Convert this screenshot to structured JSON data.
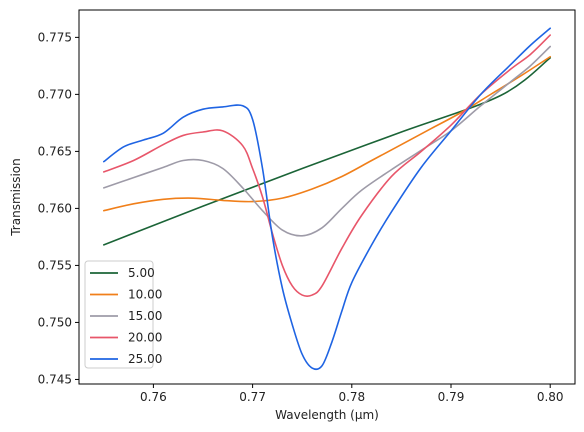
{
  "chart_data": {
    "type": "line",
    "xlabel": "Wavelength (µm)",
    "ylabel": "Transmission",
    "xlim": [
      0.7525,
      0.8025
    ],
    "ylim": [
      0.7446,
      0.7774
    ],
    "x_ticks": [
      0.76,
      0.77,
      0.78,
      0.79,
      0.8
    ],
    "y_ticks": [
      0.745,
      0.75,
      0.755,
      0.76,
      0.765,
      0.77,
      0.775
    ],
    "grid": false,
    "legend_position": "lower-left",
    "series": [
      {
        "name": "5.00",
        "color": "#1b6437",
        "points": [
          [
            0.755,
            0.7568
          ],
          [
            0.765,
            0.7602
          ],
          [
            0.775,
            0.7635
          ],
          [
            0.785,
            0.7667
          ],
          [
            0.795,
            0.7699
          ],
          [
            0.8,
            0.7732
          ]
        ]
      },
      {
        "name": "10.00",
        "color": "#f07f1a",
        "points": [
          [
            0.755,
            0.7598
          ],
          [
            0.758,
            0.7604
          ],
          [
            0.761,
            0.7608
          ],
          [
            0.764,
            0.7609
          ],
          [
            0.767,
            0.7607
          ],
          [
            0.77,
            0.7606
          ],
          [
            0.773,
            0.7609
          ],
          [
            0.776,
            0.7617
          ],
          [
            0.779,
            0.7628
          ],
          [
            0.782,
            0.7642
          ],
          [
            0.785,
            0.7656
          ],
          [
            0.788,
            0.767
          ],
          [
            0.791,
            0.7684
          ],
          [
            0.794,
            0.77
          ],
          [
            0.797,
            0.7716
          ],
          [
            0.8,
            0.7733
          ]
        ]
      },
      {
        "name": "15.00",
        "color": "#9e9ba8",
        "points": [
          [
            0.755,
            0.7618
          ],
          [
            0.758,
            0.7627
          ],
          [
            0.761,
            0.7636
          ],
          [
            0.763,
            0.7642
          ],
          [
            0.765,
            0.7642
          ],
          [
            0.767,
            0.7635
          ],
          [
            0.769,
            0.7618
          ],
          [
            0.771,
            0.7598
          ],
          [
            0.773,
            0.7581
          ],
          [
            0.775,
            0.7576
          ],
          [
            0.777,
            0.7583
          ],
          [
            0.779,
            0.76
          ],
          [
            0.781,
            0.7616
          ],
          [
            0.784,
            0.7634
          ],
          [
            0.787,
            0.7651
          ],
          [
            0.79,
            0.7668
          ],
          [
            0.793,
            0.769
          ],
          [
            0.796,
            0.7711
          ],
          [
            0.798,
            0.7725
          ],
          [
            0.8,
            0.7742
          ]
        ]
      },
      {
        "name": "20.00",
        "color": "#e8566a",
        "points": [
          [
            0.755,
            0.7632
          ],
          [
            0.758,
            0.7642
          ],
          [
            0.761,
            0.7656
          ],
          [
            0.763,
            0.7664
          ],
          [
            0.765,
            0.7667
          ],
          [
            0.767,
            0.7668
          ],
          [
            0.769,
            0.7655
          ],
          [
            0.77,
            0.7635
          ],
          [
            0.771,
            0.761
          ],
          [
            0.772,
            0.7578
          ],
          [
            0.773,
            0.755
          ],
          [
            0.774,
            0.7532
          ],
          [
            0.775,
            0.7524
          ],
          [
            0.776,
            0.7524
          ],
          [
            0.777,
            0.7532
          ],
          [
            0.779,
            0.7565
          ],
          [
            0.781,
            0.7594
          ],
          [
            0.784,
            0.7628
          ],
          [
            0.787,
            0.765
          ],
          [
            0.79,
            0.7673
          ],
          [
            0.793,
            0.77
          ],
          [
            0.796,
            0.7722
          ],
          [
            0.798,
            0.7735
          ],
          [
            0.8,
            0.7752
          ]
        ]
      },
      {
        "name": "25.00",
        "color": "#1f64e3",
        "points": [
          [
            0.755,
            0.7641
          ],
          [
            0.757,
            0.7654
          ],
          [
            0.759,
            0.766
          ],
          [
            0.761,
            0.7666
          ],
          [
            0.763,
            0.768
          ],
          [
            0.765,
            0.7687
          ],
          [
            0.767,
            0.7689
          ],
          [
            0.769,
            0.769
          ],
          [
            0.77,
            0.7678
          ],
          [
            0.771,
            0.7635
          ],
          [
            0.772,
            0.7575
          ],
          [
            0.773,
            0.753
          ],
          [
            0.774,
            0.7498
          ],
          [
            0.775,
            0.7472
          ],
          [
            0.776,
            0.746
          ],
          [
            0.777,
            0.7462
          ],
          [
            0.778,
            0.7483
          ],
          [
            0.779,
            0.751
          ],
          [
            0.78,
            0.7535
          ],
          [
            0.782,
            0.7568
          ],
          [
            0.784,
            0.7597
          ],
          [
            0.787,
            0.7636
          ],
          [
            0.79,
            0.7668
          ],
          [
            0.793,
            0.77
          ],
          [
            0.796,
            0.7726
          ],
          [
            0.798,
            0.7743
          ],
          [
            0.8,
            0.7758
          ]
        ]
      }
    ]
  }
}
